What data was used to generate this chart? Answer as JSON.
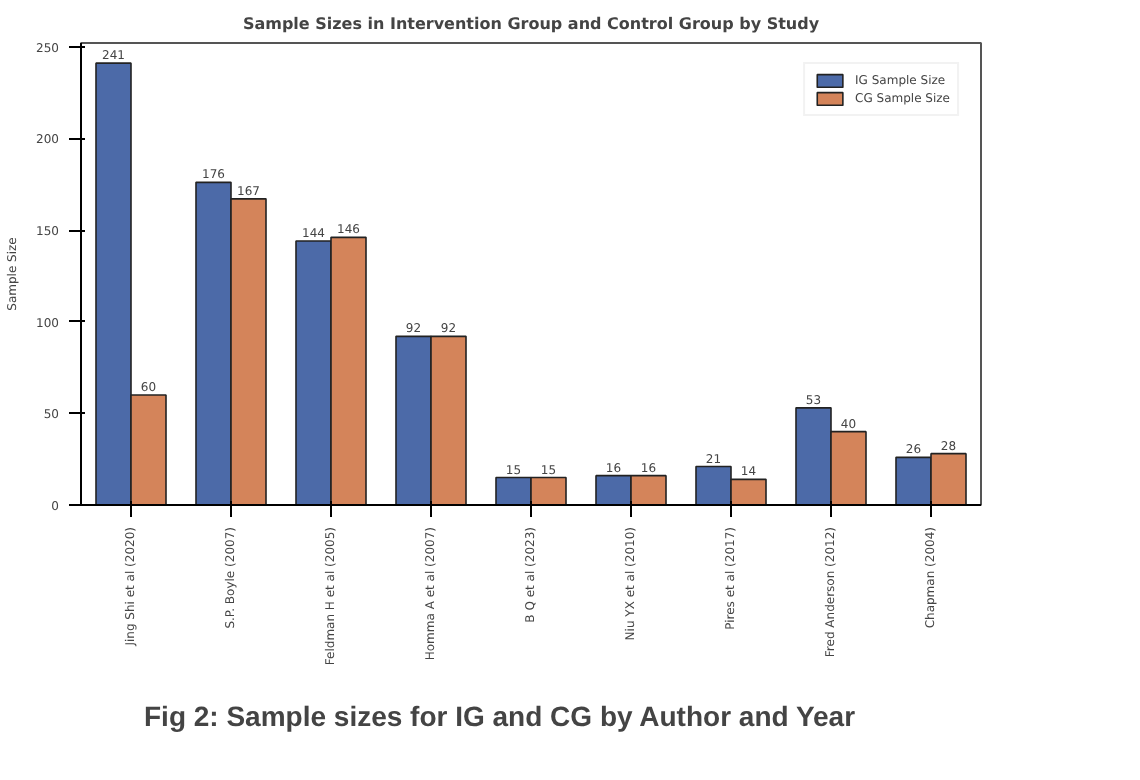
{
  "chart_data": {
    "type": "bar",
    "title": "Sample Sizes in Intervention Group and Control Group by Study",
    "ylabel": "Sample Size",
    "categories": [
      "Jing Shi et al (2020)",
      "S.P. Boyle (2007)",
      "Feldman H et al (2005)",
      "Homma A et al (2007)",
      "B Q et al (2023)",
      "Niu YX et al (2010)",
      "Pires et al (2017)",
      "Fred Anderson (2012)",
      "Chapman (2004)"
    ],
    "series": [
      {
        "name": "IG Sample Size",
        "color": "#4c6aa8",
        "values": [
          241,
          176,
          144,
          92,
          15,
          16,
          21,
          53,
          26
        ]
      },
      {
        "name": "CG Sample Size",
        "color": "#d4845a",
        "values": [
          60,
          167,
          146,
          92,
          15,
          16,
          14,
          40,
          28
        ]
      }
    ],
    "ylim": [
      0,
      252
    ],
    "yticks": [
      0,
      50,
      100,
      150,
      200,
      250
    ],
    "data_labels": true,
    "legend": "top right",
    "grid": false,
    "annotations": [
      "Fig 2: Sample sizes for IG and CG by Author and Year"
    ]
  }
}
